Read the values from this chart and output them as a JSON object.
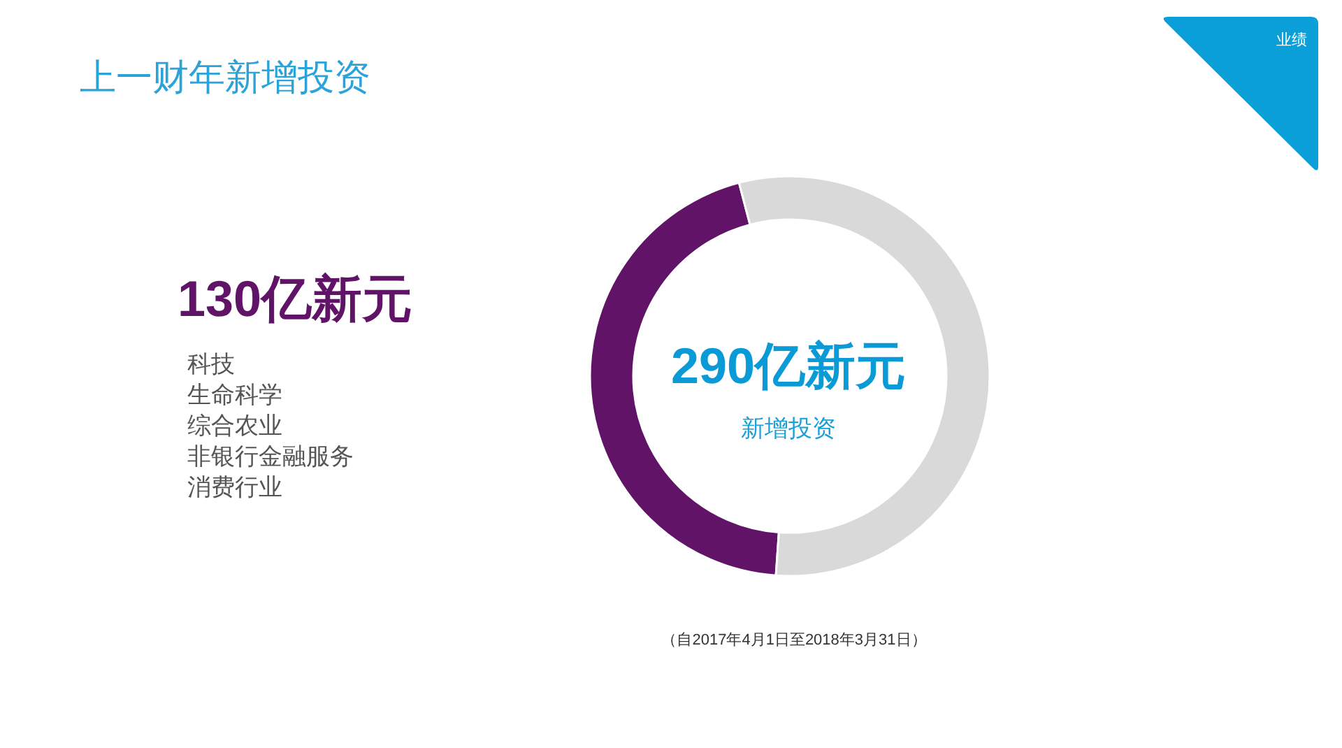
{
  "chart_data": {
    "type": "donut",
    "title": "上一财年新增投资",
    "categories": [
      null,
      null
    ],
    "values": [
      44.8,
      55.2
    ],
    "colors": [
      "#611467",
      "#d9d9d9"
    ],
    "annotations": [
      "130亿新元",
      "科技",
      "生命科学",
      "综合农业",
      "非银行金融服务",
      "消费行业",
      "290亿新元",
      "新增投资",
      "（自2017年4月1日至2018年3月31日）",
      "业绩"
    ]
  }
}
